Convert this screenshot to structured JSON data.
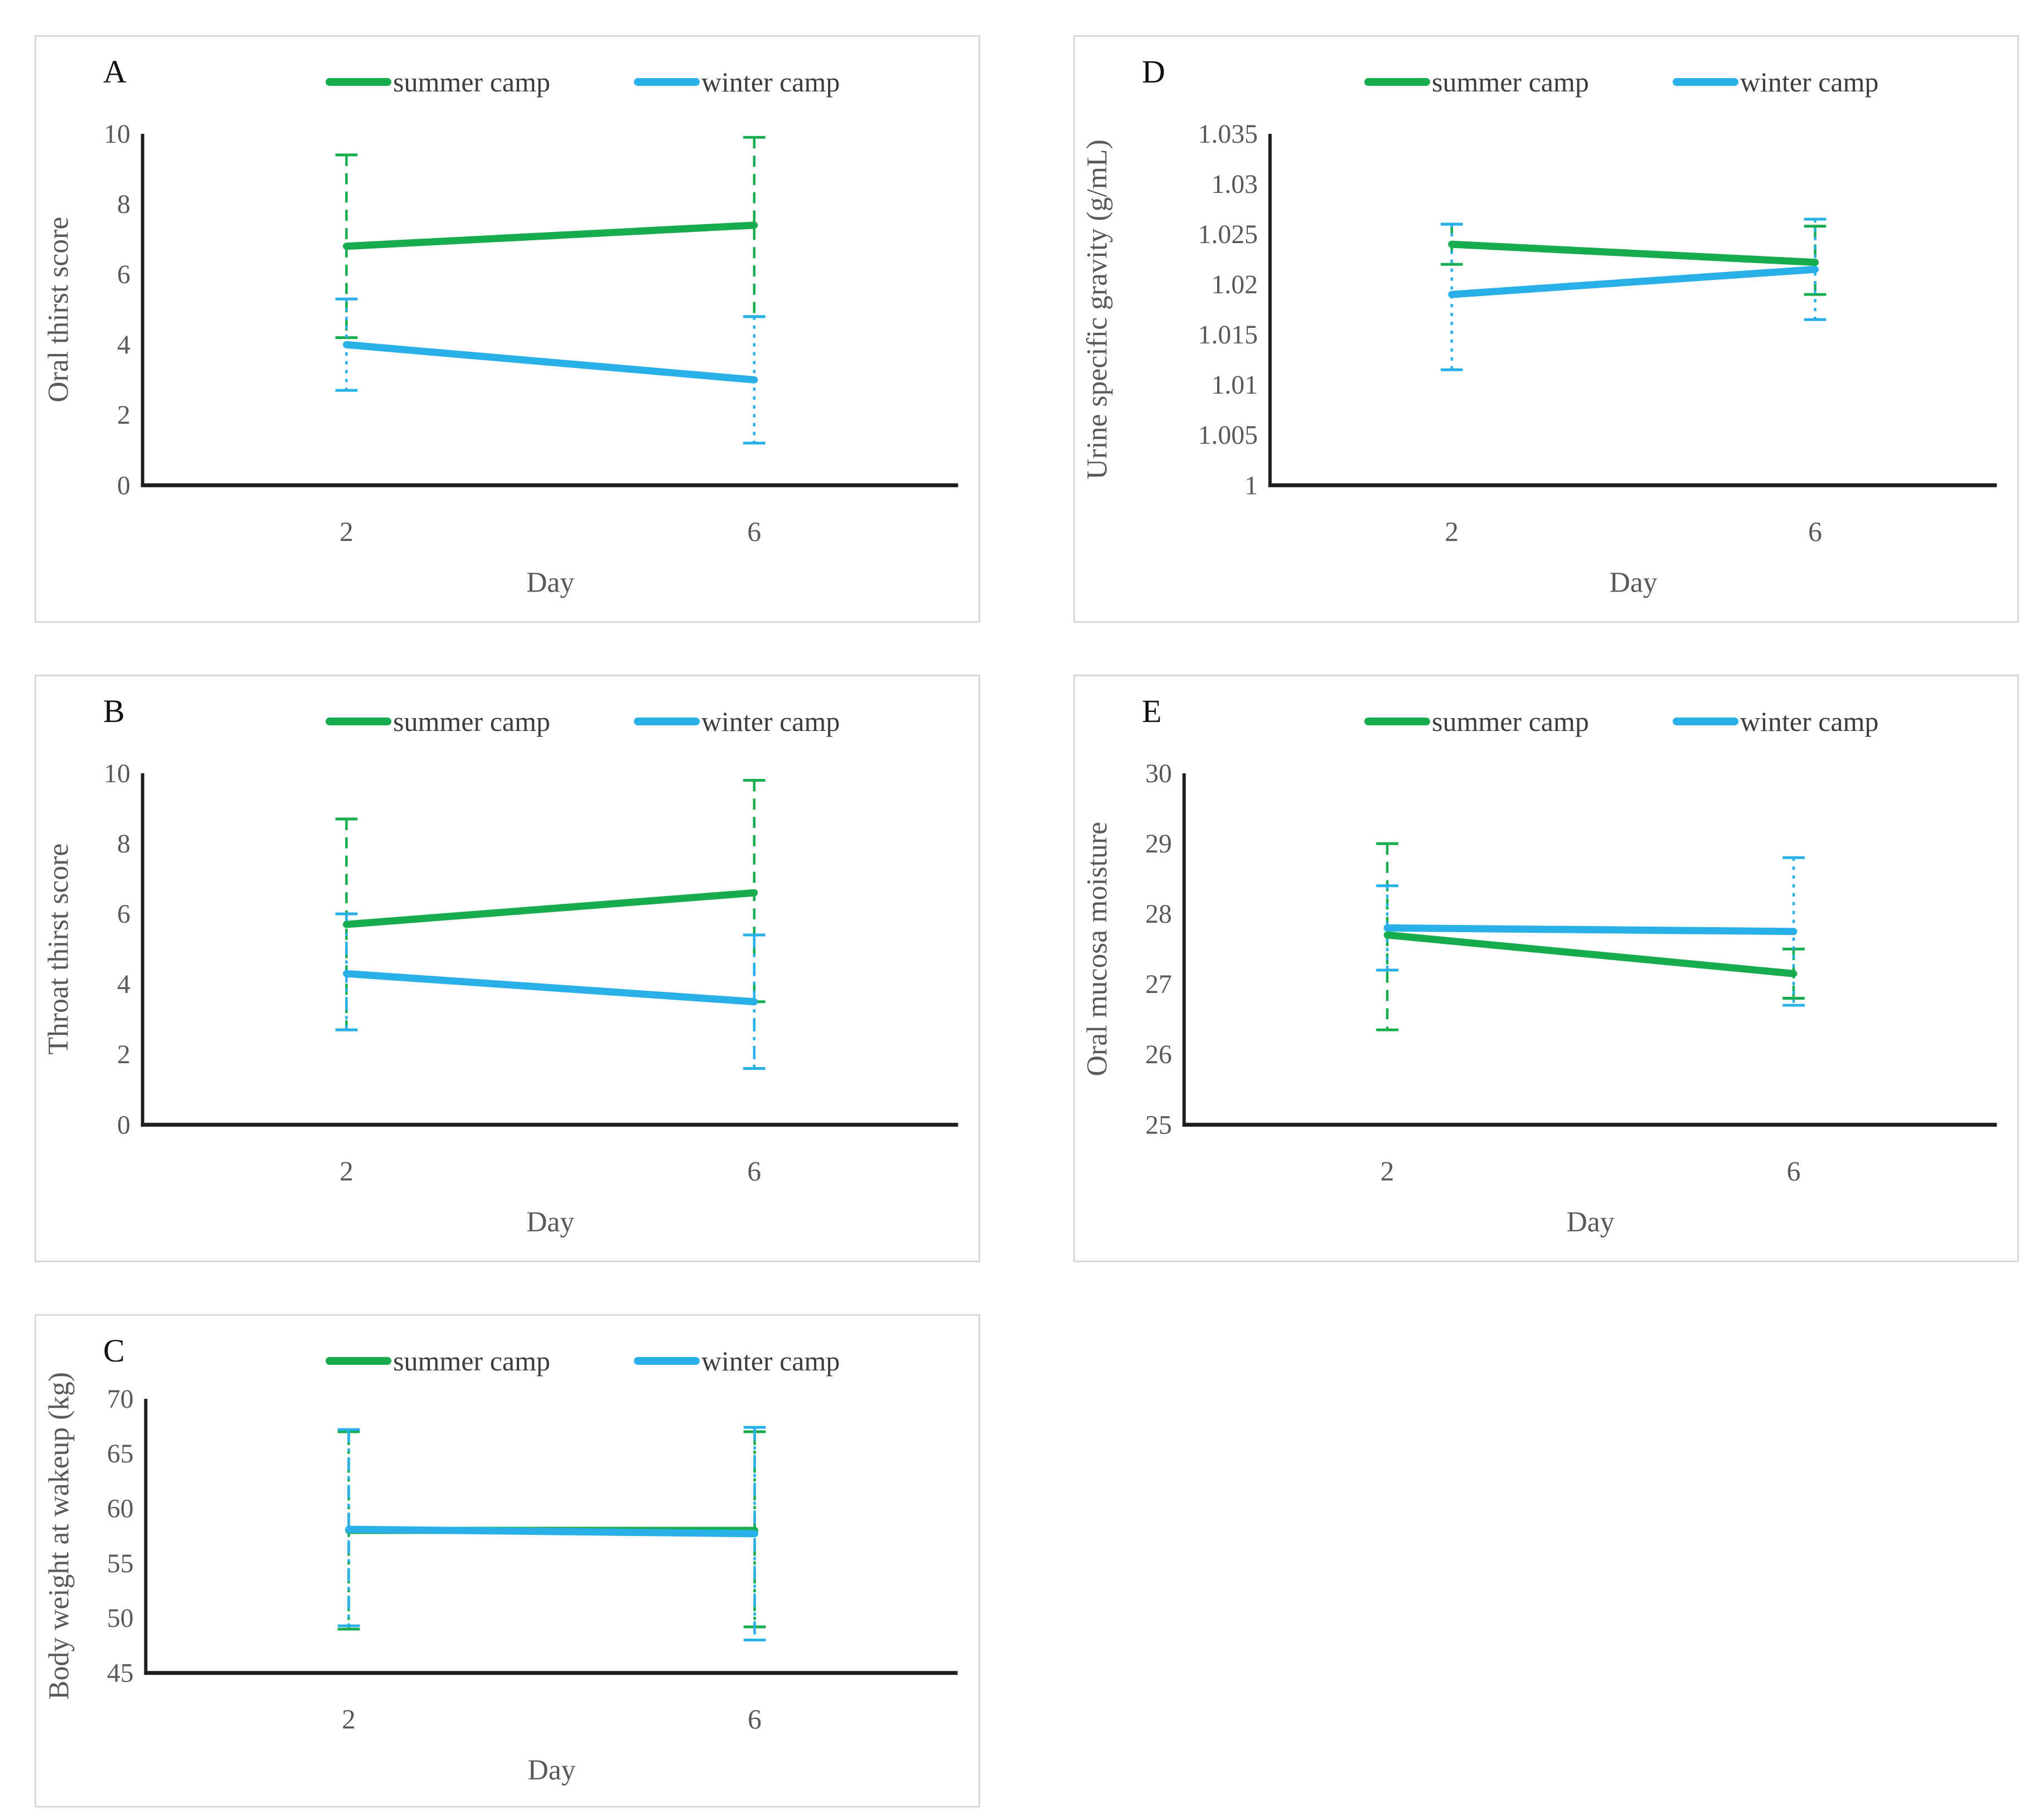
{
  "figure": {
    "colors": {
      "summer": "#17ad4f",
      "winter": "#29b0e9"
    },
    "text_color": "#595959",
    "axis_color": "#1f1f1f"
  },
  "chart_data": [
    {
      "panel": "A",
      "type": "line",
      "title": "",
      "ylabel": "Oral thirst score",
      "xlabel": "Day",
      "categories": [
        "2",
        "6"
      ],
      "ylim": [
        0,
        10
      ],
      "yticks": [
        0,
        2,
        4,
        6,
        8,
        10
      ],
      "ytick_labels": [
        "0",
        "2",
        "4",
        "6",
        "8",
        "10"
      ],
      "grid": false,
      "legend_position": "top",
      "layout": {
        "margin_left": 190,
        "plot_top": 175,
        "plot_bottom": 809
      },
      "series": [
        {
          "name": "summer camp",
          "color": "summer",
          "values": [
            6.8,
            7.4
          ],
          "err_low": [
            4.2,
            4.8
          ],
          "err_high": [
            9.4,
            9.9
          ],
          "err_dash": "dashed"
        },
        {
          "name": "winter camp",
          "color": "winter",
          "values": [
            4.0,
            3.0
          ],
          "err_low": [
            2.7,
            1.2
          ],
          "err_high": [
            5.3,
            4.8
          ],
          "err_dash": "dotted"
        }
      ]
    },
    {
      "panel": "B",
      "type": "line",
      "title": "",
      "ylabel": "Throat thirst score",
      "xlabel": "Day",
      "categories": [
        "2",
        "6"
      ],
      "ylim": [
        0,
        10
      ],
      "yticks": [
        0,
        2,
        4,
        6,
        8,
        10
      ],
      "ytick_labels": [
        "0",
        "2",
        "4",
        "6",
        "8",
        "10"
      ],
      "grid": false,
      "legend_position": "top",
      "layout": {
        "margin_left": 190,
        "plot_top": 175,
        "plot_bottom": 809
      },
      "series": [
        {
          "name": "summer camp",
          "color": "summer",
          "values": [
            5.7,
            6.6
          ],
          "err_low": [
            2.7,
            3.5
          ],
          "err_high": [
            8.7,
            9.8
          ],
          "err_dash": "dashed"
        },
        {
          "name": "winter camp",
          "color": "winter",
          "values": [
            4.3,
            3.5
          ],
          "err_low": [
            2.7,
            1.6
          ],
          "err_high": [
            6.0,
            5.4
          ],
          "err_dash": "dashdot"
        }
      ]
    },
    {
      "panel": "C",
      "type": "line",
      "title": "",
      "ylabel": "Body weight at wakeup (kg)",
      "xlabel": "Day",
      "categories": [
        "2",
        "6"
      ],
      "ylim": [
        45,
        70
      ],
      "yticks": [
        45,
        50,
        55,
        60,
        65,
        70
      ],
      "ytick_labels": [
        "45",
        "50",
        "55",
        "60",
        "65",
        "70"
      ],
      "grid": false,
      "legend_position": "top",
      "layout": {
        "margin_left": 195,
        "plot_top": 150,
        "plot_bottom": 645
      },
      "series": [
        {
          "name": "summer camp",
          "color": "summer",
          "values": [
            58.0,
            58.0
          ],
          "err_low": [
            49.0,
            49.2
          ],
          "err_high": [
            67.0,
            67.0
          ],
          "err_dash": "dashdot"
        },
        {
          "name": "winter camp",
          "color": "winter",
          "values": [
            58.1,
            57.7
          ],
          "err_low": [
            49.3,
            48.0
          ],
          "err_high": [
            67.2,
            67.4
          ],
          "err_dash": "dashdot"
        }
      ]
    },
    {
      "panel": "D",
      "type": "line",
      "title": "",
      "ylabel": "Urine specific gravity (g/mL)",
      "xlabel": "Day",
      "categories": [
        "2",
        "6"
      ],
      "ylim": [
        1.0,
        1.035
      ],
      "yticks": [
        1.0,
        1.005,
        1.01,
        1.015,
        1.02,
        1.025,
        1.03,
        1.035
      ],
      "ytick_labels": [
        "1",
        "1.005",
        "1.01",
        "1.015",
        "1.02",
        "1.025",
        "1.03",
        "1.035"
      ],
      "grid": false,
      "legend_position": "top",
      "layout": {
        "margin_left": 350,
        "plot_top": 175,
        "plot_bottom": 809
      },
      "series": [
        {
          "name": "summer camp",
          "color": "summer",
          "values": [
            1.024,
            1.0222
          ],
          "err_low": [
            1.022,
            1.019
          ],
          "err_high": [
            1.026,
            1.0258
          ],
          "err_dash": "dashed"
        },
        {
          "name": "winter camp",
          "color": "winter",
          "values": [
            1.019,
            1.0215
          ],
          "err_low": [
            1.0115,
            1.0165
          ],
          "err_high": [
            1.026,
            1.0265
          ],
          "err_dash": "dotted"
        }
      ]
    },
    {
      "panel": "E",
      "type": "line",
      "title": "",
      "ylabel": "Oral mucosa moisture",
      "xlabel": "Day",
      "categories": [
        "2",
        "6"
      ],
      "ylim": [
        25,
        30
      ],
      "yticks": [
        25,
        26,
        27,
        28,
        29,
        30
      ],
      "ytick_labels": [
        "25",
        "26",
        "27",
        "28",
        "29",
        "30"
      ],
      "grid": false,
      "legend_position": "top",
      "layout": {
        "margin_left": 195,
        "plot_top": 175,
        "plot_bottom": 809
      },
      "series": [
        {
          "name": "summer camp",
          "color": "summer",
          "values": [
            27.7,
            27.15
          ],
          "err_low": [
            26.35,
            26.8
          ],
          "err_high": [
            29.0,
            27.5
          ],
          "err_dash": "dashed"
        },
        {
          "name": "winter camp",
          "color": "winter",
          "values": [
            27.8,
            27.75
          ],
          "err_low": [
            27.2,
            26.7
          ],
          "err_high": [
            28.4,
            28.8
          ],
          "err_dash": "dotted"
        }
      ]
    }
  ]
}
